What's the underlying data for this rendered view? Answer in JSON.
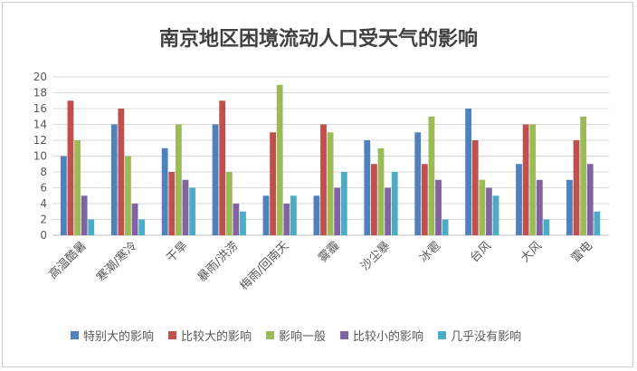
{
  "chart_data": {
    "type": "bar",
    "title": "南京地区困境流动人口受天气的影响",
    "xlabel": "",
    "ylabel": "",
    "ylim": [
      0,
      20
    ],
    "yticks": [
      0,
      2,
      4,
      6,
      8,
      10,
      12,
      14,
      16,
      18,
      20
    ],
    "grid": true,
    "legend_position": "bottom",
    "categories": [
      "高温酷暑",
      "寒潮/寒冷",
      "干旱",
      "暴雨/洪涝",
      "梅雨/回南天",
      "雾霾",
      "沙尘暴",
      "冰雹",
      "台风",
      "大风",
      "雷电"
    ],
    "series": [
      {
        "name": "特别大的影响",
        "color": "#4f81bd",
        "values": [
          10,
          14,
          11,
          14,
          5,
          5,
          12,
          13,
          16,
          9,
          7
        ]
      },
      {
        "name": "比较大的影响",
        "color": "#c0504d",
        "values": [
          17,
          16,
          8,
          17,
          13,
          14,
          9,
          9,
          12,
          14,
          12
        ]
      },
      {
        "name": "影响一般",
        "color": "#9bbb59",
        "values": [
          12,
          10,
          14,
          8,
          19,
          13,
          11,
          15,
          7,
          14,
          15
        ]
      },
      {
        "name": "比较小的影响",
        "color": "#8064a2",
        "values": [
          5,
          4,
          7,
          4,
          4,
          6,
          6,
          7,
          6,
          7,
          9
        ]
      },
      {
        "name": "几乎没有影响",
        "color": "#4bacc6",
        "values": [
          2,
          2,
          6,
          3,
          5,
          8,
          8,
          2,
          5,
          2,
          3
        ]
      }
    ]
  }
}
